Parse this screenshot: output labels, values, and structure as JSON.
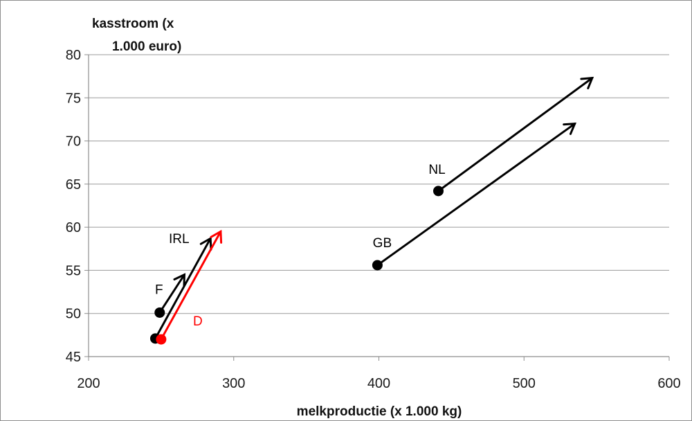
{
  "chart_data": {
    "type": "scatter",
    "title": "",
    "ylabel_lines": [
      "kasstroom  (x",
      "1.000 euro)"
    ],
    "xlabel": "melkproductie (x 1.000 kg)",
    "xlim": [
      200,
      600
    ],
    "ylim": [
      45,
      80
    ],
    "x_ticks": [
      "200",
      "300",
      "400",
      "500",
      "600"
    ],
    "y_ticks": [
      "45",
      "50",
      "55",
      "60",
      "65",
      "70",
      "75",
      "80"
    ],
    "grid": "horizontal",
    "colors": {
      "black": "#000000",
      "red": "#ff0000",
      "grid": "#9a9a9a"
    },
    "points": [
      {
        "label": "NL",
        "x": 441,
        "y": 64.2,
        "to": [
          547,
          77.3
        ],
        "color": "#000000"
      },
      {
        "label": "GB",
        "x": 399,
        "y": 55.6,
        "to": [
          535,
          72.0
        ],
        "color": "#000000"
      },
      {
        "label": "F",
        "x": 249,
        "y": 50.1,
        "to": [
          266,
          54.5
        ],
        "color": "#000000"
      },
      {
        "label": "IRL",
        "x": 246,
        "y": 47.1,
        "to": [
          284,
          58.7
        ],
        "color": "#000000"
      },
      {
        "label": "D",
        "x": 250,
        "y": 47.0,
        "to": [
          291,
          59.5
        ],
        "color": "#ff0000"
      }
    ]
  }
}
